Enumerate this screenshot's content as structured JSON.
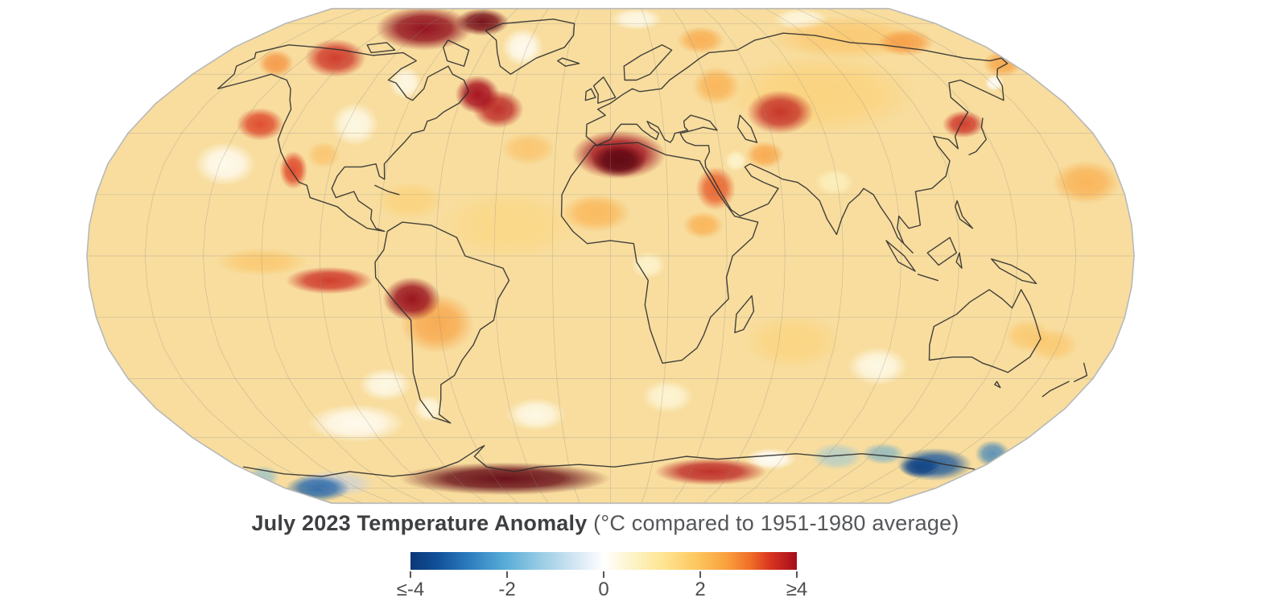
{
  "caption": {
    "title": "July 2023 Temperature Anomaly",
    "units_note": "(°C compared to 1951-1980 average)"
  },
  "colors": {
    "background": "#ffffff",
    "map_base": "#f8dd9e",
    "no_data": "#d3d3d3",
    "coastline": "#2f2f2f",
    "graticule": "#8a8a8a",
    "projection_outline": "#b8b8b8",
    "caption_title_text": "#3d3f42",
    "caption_note_text": "#54565a",
    "tick_label_text": "#4b4d50",
    "tick_mark": "#55575a"
  },
  "chart_data": {
    "type": "heatmap",
    "subtype": "global_temperature_anomaly_map",
    "projection": "robinson",
    "title": "July 2023 Temperature Anomaly",
    "units": "°C",
    "baseline": "1951-1980 average",
    "period": "July 2023",
    "legend_position": "bottom-center",
    "grid": true,
    "scale": {
      "min": -4,
      "max": 4,
      "tick_values": [
        -4,
        -2,
        0,
        2,
        4
      ],
      "tick_labels": [
        "≤-4",
        "-2",
        "0",
        "2",
        "≥4"
      ]
    },
    "colorbar_stops": [
      {
        "t": 0.0,
        "color": "#0a3876"
      },
      {
        "t": 0.07,
        "color": "#11509b"
      },
      {
        "t": 0.15,
        "color": "#2d7cbe"
      },
      {
        "t": 0.24,
        "color": "#55aad7"
      },
      {
        "t": 0.33,
        "color": "#95cae4"
      },
      {
        "t": 0.42,
        "color": "#cfe4f1"
      },
      {
        "t": 0.5,
        "color": "#ffffff"
      },
      {
        "t": 0.57,
        "color": "#fdf4ca"
      },
      {
        "t": 0.65,
        "color": "#fee695"
      },
      {
        "t": 0.74,
        "color": "#fdc75f"
      },
      {
        "t": 0.82,
        "color": "#f99f3c"
      },
      {
        "t": 0.88,
        "color": "#ef6e28"
      },
      {
        "t": 0.93,
        "color": "#da3520"
      },
      {
        "t": 1.0,
        "color": "#a50c1c"
      }
    ],
    "regions": [
      {
        "name": "canadian-high-arctic",
        "lat": 78,
        "lon": -100,
        "rlon": 26,
        "rlat": 8,
        "anomaly": 4.6
      },
      {
        "name": "arctic-archipelago-core",
        "lat": 81,
        "lon": -72,
        "rlon": 15,
        "rlat": 5,
        "anomaly": 5.0
      },
      {
        "name": "northwest-canada",
        "lat": 66,
        "lon": -126,
        "rlon": 14,
        "rlat": 7,
        "anomaly": 3.6
      },
      {
        "name": "alaska-interior",
        "lat": 64,
        "lon": -150,
        "rlon": 8,
        "rlat": 5,
        "anomaly": 2.8
      },
      {
        "name": "labrador-newfoundland",
        "lat": 53,
        "lon": -54,
        "rlon": 9,
        "rlat": 7,
        "anomaly": 4.2
      },
      {
        "name": "north-atlantic-central",
        "lat": 48,
        "lon": -44,
        "rlon": 10,
        "rlat": 7,
        "anomaly": 3.8
      },
      {
        "name": "azores-wash",
        "lat": 35,
        "lon": -30,
        "rlon": 10,
        "rlat": 6,
        "anomaly": 2.2
      },
      {
        "name": "pacific-northwest-offshore",
        "lat": 43,
        "lon": -133,
        "rlon": 9,
        "rlat": 6,
        "anomaly": 3.4
      },
      {
        "name": "baja-california",
        "lat": 28,
        "lon": -113,
        "rlon": 5,
        "rlat": 7,
        "anomaly": 3.4
      },
      {
        "name": "us-southwest",
        "lat": 33,
        "lon": -104,
        "rlon": 6,
        "rlat": 5,
        "anomaly": 2.2
      },
      {
        "name": "mediterranean-north-africa",
        "lat": 33,
        "lon": 3,
        "rlon": 17,
        "rlat": 9,
        "anomaly": 4.4
      },
      {
        "name": "algeria-maroon-core",
        "lat": 31,
        "lon": 3,
        "rlon": 10,
        "rlat": 6,
        "anomaly": 5.3
      },
      {
        "name": "sahel-wash",
        "lat": 14,
        "lon": -5,
        "rlon": 12,
        "rlat": 7,
        "anomaly": 2.3
      },
      {
        "name": "red-sea-egypt",
        "lat": 22,
        "lon": 37,
        "rlon": 7,
        "rlat": 8,
        "anomaly": 3.2
      },
      {
        "name": "iraq-neutral",
        "lat": 31,
        "lon": 45,
        "rlon": 4,
        "rlat": 4,
        "anomaly": 0.5
      },
      {
        "name": "iran-plateau",
        "lat": 33,
        "lon": 56,
        "rlon": 7,
        "rlat": 5,
        "anomaly": 2.6
      },
      {
        "name": "central-asia",
        "lat": 47,
        "lon": 66,
        "rlon": 13,
        "rlat": 8,
        "anomaly": 3.7
      },
      {
        "name": "west-russia-wash",
        "lat": 56,
        "lon": 44,
        "rlon": 10,
        "rlat": 7,
        "anomaly": 2.4
      },
      {
        "name": "barents-svalbard",
        "lat": 73,
        "lon": 45,
        "rlon": 12,
        "rlat": 5,
        "anomaly": 2.5
      },
      {
        "name": "siberia-arctic-coast",
        "lat": 72,
        "lon": 145,
        "rlon": 14,
        "rlat": 5,
        "anomaly": 2.7
      },
      {
        "name": "northeast-asia-japan-sea",
        "lat": 43,
        "lon": 134,
        "rlon": 8,
        "rlat": 5,
        "anomaly": 3.6
      },
      {
        "name": "bering-strait",
        "lat": 64,
        "lon": 176,
        "rlon": 9,
        "rlat": 5,
        "anomaly": 2.6
      },
      {
        "name": "north-pacific-dateline",
        "lat": 24,
        "lon": 168,
        "rlon": 12,
        "rlat": 8,
        "anomaly": 2.4
      },
      {
        "name": "kamchatka-coast-neutral",
        "lat": 57,
        "lon": 161,
        "rlon": 4,
        "rlat": 3,
        "anomaly": 0.0
      },
      {
        "name": "greenland-neutral",
        "lat": 70,
        "lon": -42,
        "rlon": 10,
        "rlat": 7,
        "anomaly": 0.1
      },
      {
        "name": "hudson-bay-neutral",
        "lat": 57,
        "lon": -86,
        "rlon": 7,
        "rlat": 6,
        "anomaly": 0.2
      },
      {
        "name": "central-north-america-neutral",
        "lat": 43,
        "lon": -97,
        "rlon": 9,
        "rlat": 8,
        "anomaly": 0.2
      },
      {
        "name": "northeast-pacific-neutral",
        "lat": 30,
        "lon": -138,
        "rlon": 11,
        "rlat": 8,
        "anomaly": 0.1
      },
      {
        "name": "india-neutral",
        "lat": 24,
        "lon": 79,
        "rlon": 7,
        "rlat": 5,
        "anomaly": 0.7
      },
      {
        "name": "congo-coast-neutral",
        "lat": -3,
        "lon": 13,
        "rlon": 6,
        "rlat": 5,
        "anomaly": 0.5
      },
      {
        "name": "arctic-fram-neutral",
        "lat": 83,
        "lon": 15,
        "rlon": 15,
        "rlat": 4,
        "anomaly": 0.2
      },
      {
        "name": "arctic-laptev-neutral",
        "lat": 83,
        "lon": 110,
        "rlon": 16,
        "rlat": 4,
        "anomaly": 0.3
      },
      {
        "name": "ethiopia-sudan",
        "lat": 10,
        "lon": 32,
        "rlon": 7,
        "rlat": 5,
        "anomaly": 2.4
      },
      {
        "name": "peru-bolivia-andes",
        "lat": -14,
        "lon": -69,
        "rlon": 10,
        "rlat": 8,
        "anomaly": 4.5
      },
      {
        "name": "south-pacific-warm-band",
        "lat": -8,
        "lon": -97,
        "rlon": 15,
        "rlat": 5,
        "anomaly": 3.6
      },
      {
        "name": "south-america-wash",
        "lat": -22,
        "lon": -61,
        "rlon": 13,
        "rlat": 11,
        "anomaly": 2.6
      },
      {
        "name": "equatorial-east-pacific",
        "lat": -2,
        "lon": -120,
        "rlon": 16,
        "rlat": 5,
        "anomaly": 2.1
      },
      {
        "name": "caribbean-wash",
        "lat": 18,
        "lon": -70,
        "rlon": 12,
        "rlat": 7,
        "anomaly": 1.8
      },
      {
        "name": "atlantic-tropics-wash",
        "lat": 10,
        "lon": -35,
        "rlon": 24,
        "rlat": 13,
        "anomaly": 1.6
      },
      {
        "name": "eurasia-wash",
        "lat": 53,
        "lon": 85,
        "rlon": 40,
        "rlat": 15,
        "anomaly": 1.8
      },
      {
        "name": "arctic-siberia-wash",
        "lat": 74,
        "lon": 120,
        "rlon": 40,
        "rlat": 8,
        "anomaly": 2.1
      },
      {
        "name": "indian-ocean-wash",
        "lat": -28,
        "lon": 65,
        "rlon": 18,
        "rlat": 10,
        "anomaly": 1.7
      },
      {
        "name": "east-australia",
        "lat": -26,
        "lon": 148,
        "rlon": 8,
        "rlat": 6,
        "anomaly": 2.1
      },
      {
        "name": "north-of-new-zealand",
        "lat": -29,
        "lon": 158,
        "rlon": 9,
        "rlat": 6,
        "anomaly": 2.1
      },
      {
        "name": "southwest-australia-neutral",
        "lat": -36,
        "lon": 98,
        "rlon": 11,
        "rlat": 7,
        "anomaly": 0.2
      },
      {
        "name": "chile-coast-neutral",
        "lat": -42,
        "lon": -85,
        "rlon": 10,
        "rlat": 6,
        "anomaly": 0.2
      },
      {
        "name": "patagonia-neutral",
        "lat": -50,
        "lon": -72,
        "rlon": 6,
        "rlat": 5,
        "anomaly": 0.3
      },
      {
        "name": "south-pacific-neutral",
        "lat": -55,
        "lon": -105,
        "rlon": 20,
        "rlat": 7,
        "anomaly": 0.1
      },
      {
        "name": "south-atlantic-neutral",
        "lat": -52,
        "lon": -30,
        "rlon": 12,
        "rlat": 6,
        "anomaly": 0.2
      },
      {
        "name": "cape-agulhas-neutral",
        "lat": -46,
        "lon": 22,
        "rlon": 10,
        "rlat": 6,
        "anomaly": 0.4
      },
      {
        "name": "southern-ocean-neutral",
        "lat": -68,
        "lon": 75,
        "rlon": 12,
        "rlat": 4,
        "anomaly": 0.0
      },
      {
        "name": "antarctica-west-maroon",
        "lat": -76,
        "lon": -55,
        "rlon": 55,
        "rlat": 6,
        "anomaly": 5.2
      },
      {
        "name": "antarctica-east-red",
        "lat": -73,
        "lon": 50,
        "rlon": 28,
        "rlat": 5,
        "anomaly": 3.8
      },
      {
        "name": "ross-sea-gray-nodata",
        "lat": -78,
        "lon": -148,
        "rlon": 22,
        "rlat": 5,
        "anomaly": null,
        "color": "#d3d3d3"
      },
      {
        "name": "ross-shelf-blue",
        "lat": -80,
        "lon": -162,
        "rlon": 18,
        "rlat": 5,
        "anomaly": -3.2
      },
      {
        "name": "amundsen-lightblue",
        "lat": -75,
        "lon": -178,
        "rlon": 8,
        "rlat": 4,
        "anomaly": -1.8
      },
      {
        "name": "wilkes-land-blue",
        "lat": -70,
        "lon": 155,
        "rlon": 18,
        "rlat": 6,
        "anomaly": -3.4
      },
      {
        "name": "wilkes-deep-blue",
        "lat": -71,
        "lon": 150,
        "rlon": 10,
        "rlat": 4,
        "anomaly": -3.8
      },
      {
        "name": "far-east-antarctic-blue",
        "lat": -66,
        "lon": 175,
        "rlon": 8,
        "rlat": 5,
        "anomaly": -2.8
      },
      {
        "name": "adelie-coast-blue",
        "lat": -66,
        "lon": 125,
        "rlon": 10,
        "rlat": 4,
        "anomaly": -2.2
      },
      {
        "name": "indian-antarctic-lightblue",
        "lat": -67,
        "lon": 105,
        "rlon": 12,
        "rlat": 5,
        "anomaly": -1.5
      }
    ]
  }
}
